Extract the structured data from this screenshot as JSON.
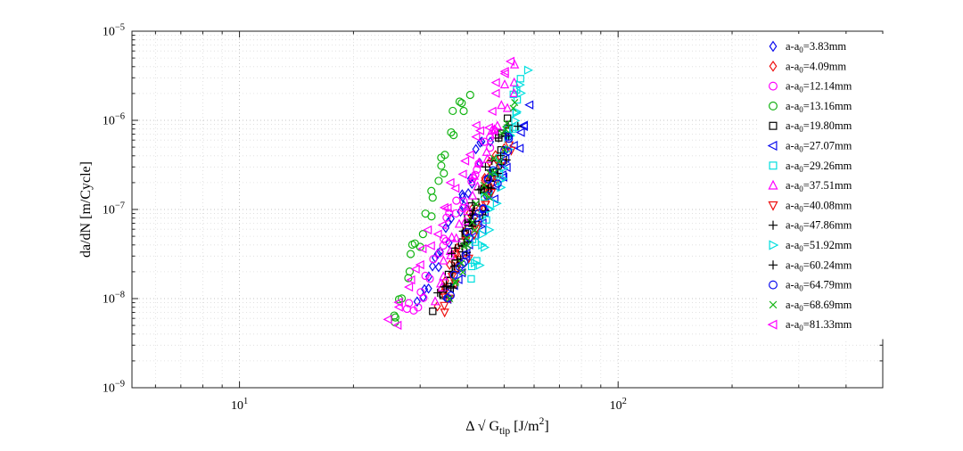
{
  "chart_data": {
    "type": "scatter",
    "title": "",
    "xlabel": "Δ √G_tip [J/m^2]",
    "ylabel": "da/dN [m/Cycle]",
    "x_scale": "log",
    "y_scale": "log",
    "xlim": [
      5.2,
      500
    ],
    "ylim": [
      1e-09,
      1e-05
    ],
    "x_ticks": [
      10,
      100
    ],
    "y_ticks": [
      1e-05,
      1e-06,
      1e-07,
      1e-08,
      1e-09
    ],
    "grid": "major and minor, dotted",
    "legend_position": "inside-right",
    "xlabel_parts": {
      "pre": "Δ √ G",
      "sub": "tip",
      "mid": " [J/m",
      "sup": "2",
      "post": "]"
    },
    "series": [
      {
        "label": "a-a_0=3.83mm",
        "label_pre": "a-a",
        "label_sub": "0",
        "label_post": "=3.83mm",
        "color": "#0b0bee",
        "marker": "diamond",
        "x_range": [
          30,
          45
        ],
        "y_range": [
          8e-09,
          7e-07
        ],
        "n_points": 26,
        "seed": 101
      },
      {
        "label": "a-a_0=4.09mm",
        "label_pre": "a-a",
        "label_sub": "0",
        "label_post": "=4.09mm",
        "color": "#ee1010",
        "marker": "diamond",
        "x_range": [
          33,
          50
        ],
        "y_range": [
          8e-09,
          6e-07
        ],
        "n_points": 26,
        "seed": 102
      },
      {
        "label": "a-a_0=12.14mm",
        "label_pre": "a-a",
        "label_sub": "0",
        "label_post": "=12.14mm",
        "color": "#ff00ff",
        "marker": "circle",
        "x_range": [
          28,
          47
        ],
        "y_range": [
          6e-09,
          8e-07
        ],
        "n_points": 28,
        "seed": 103
      },
      {
        "label": "a-a_0=13.16mm",
        "label_pre": "a-a",
        "label_sub": "0",
        "label_post": "=13.16mm",
        "color": "#12b412",
        "marker": "circle",
        "x_range": [
          25,
          40
        ],
        "y_range": [
          5e-09,
          2.5e-06
        ],
        "n_points": 28,
        "seed": 104
      },
      {
        "label": "a-a_0=19.80mm",
        "label_pre": "a-a",
        "label_sub": "0",
        "label_post": "=19.80mm",
        "color": "#000000",
        "marker": "square",
        "x_range": [
          33,
          52
        ],
        "y_range": [
          8e-09,
          9e-07
        ],
        "n_points": 24,
        "seed": 105
      },
      {
        "label": "a-a_0=27.07mm",
        "label_pre": "a-a",
        "label_sub": "0",
        "label_post": "=27.07mm",
        "color": "#0b0bee",
        "marker": "triangle-left",
        "x_range": [
          36,
          58
        ],
        "y_range": [
          9e-09,
          1.4e-06
        ],
        "n_points": 26,
        "seed": 106
      },
      {
        "label": "a-a_0=29.26mm",
        "label_pre": "a-a",
        "label_sub": "0",
        "label_post": "=29.26mm",
        "color": "#00dede",
        "marker": "square",
        "x_range": [
          40,
          56
        ],
        "y_range": [
          1.8e-08,
          2.8e-06
        ],
        "n_points": 22,
        "seed": 107
      },
      {
        "label": "a-a_0=37.51mm",
        "label_pre": "a-a",
        "label_sub": "0",
        "label_post": "=37.51mm",
        "color": "#ff00ff",
        "marker": "triangle-up",
        "x_range": [
          33,
          54
        ],
        "y_range": [
          1e-08,
          3.5e-06
        ],
        "n_points": 30,
        "seed": 108
      },
      {
        "label": "a-a_0=40.08mm",
        "label_pre": "a-a",
        "label_sub": "0",
        "label_post": "=40.08mm",
        "color": "#ee1010",
        "marker": "triangle-down",
        "x_range": [
          34,
          52
        ],
        "y_range": [
          7e-09,
          6e-07
        ],
        "n_points": 24,
        "seed": 109
      },
      {
        "label": "a-a_0=47.86mm",
        "label_pre": "a-a",
        "label_sub": "0",
        "label_post": "=47.86mm",
        "color": "#000000",
        "marker": "plus",
        "x_range": [
          34,
          50
        ],
        "y_range": [
          1e-08,
          7e-07
        ],
        "n_points": 24,
        "seed": 110
      },
      {
        "label": "a-a_0=51.92mm",
        "label_pre": "a-a",
        "label_sub": "0",
        "label_post": "=51.92mm",
        "color": "#00dede",
        "marker": "triangle-right",
        "x_range": [
          42,
          57
        ],
        "y_range": [
          2e-08,
          3.2e-06
        ],
        "n_points": 22,
        "seed": 111
      },
      {
        "label": "a-a_0=60.24mm",
        "label_pre": "a-a",
        "label_sub": "0",
        "label_post": "=60.24mm",
        "color": "#000000",
        "marker": "plus",
        "x_range": [
          36,
          53
        ],
        "y_range": [
          1.2e-08,
          1e-06
        ],
        "n_points": 24,
        "seed": 112
      },
      {
        "label": "a-a_0=64.79mm",
        "label_pre": "a-a",
        "label_sub": "0",
        "label_post": "=64.79mm",
        "color": "#0b0bee",
        "marker": "circle",
        "x_range": [
          35,
          52
        ],
        "y_range": [
          9e-09,
          8e-07
        ],
        "n_points": 24,
        "seed": 113
      },
      {
        "label": "a-a_0=68.69mm",
        "label_pre": "a-a",
        "label_sub": "0",
        "label_post": "=68.69mm",
        "color": "#12b412",
        "marker": "x",
        "x_range": [
          36,
          54
        ],
        "y_range": [
          1e-08,
          1.6e-06
        ],
        "n_points": 24,
        "seed": 114
      },
      {
        "label": "a-a_0=81.33mm",
        "label_pre": "a-a",
        "label_sub": "0",
        "label_post": "=81.33mm",
        "color": "#ff00ff",
        "marker": "triangle-left",
        "x_range": [
          25,
          52
        ],
        "y_range": [
          4.5e-09,
          4.5e-06
        ],
        "n_points": 30,
        "seed": 115
      }
    ]
  },
  "colors": {
    "axis": "#222222",
    "grid_major": "#b4b4b4",
    "grid_minor": "#dcdcdc",
    "background": "#ffffff"
  }
}
